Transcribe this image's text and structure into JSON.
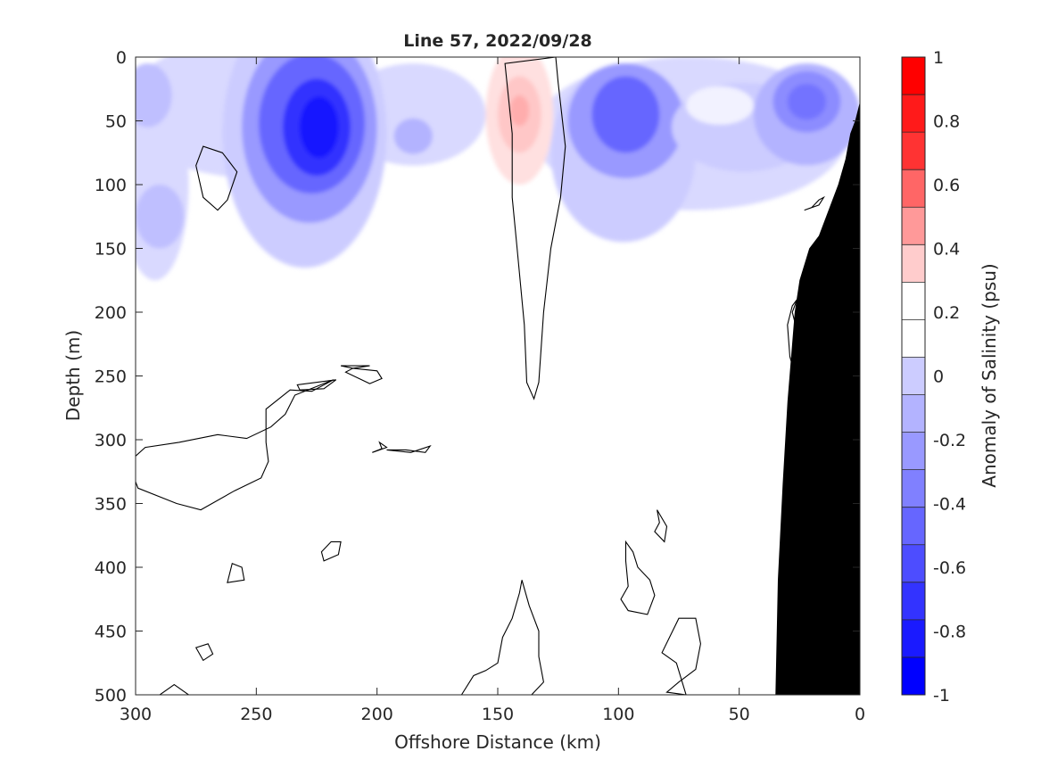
{
  "chart_data": {
    "type": "heatmap",
    "title": "Line 57, 2022/09/28",
    "xlabel": "Offshore Distance (km)",
    "ylabel": "Depth (m)",
    "colorbar_label": "Anomaly of Salinity (psu)",
    "xlim": [
      300,
      0
    ],
    "ylim": [
      500,
      0
    ],
    "x_reversed": true,
    "y_reversed": true,
    "x_ticks": [
      300,
      250,
      200,
      150,
      100,
      50,
      0
    ],
    "y_ticks": [
      0,
      50,
      100,
      150,
      200,
      250,
      300,
      350,
      400,
      450,
      500
    ],
    "colorbar_ticks": [
      1,
      0.8,
      0.6,
      0.4,
      0.2,
      0,
      -0.2,
      -0.4,
      -0.6,
      -0.8,
      -1
    ],
    "clim": [
      -1,
      1
    ],
    "contour_step": 0.1,
    "colorbar_colors": [
      "#ff0000",
      "#ff1a1a",
      "#ff3333",
      "#ff6666",
      "#ff9999",
      "#ffcccc",
      "#ffffff",
      "#ffffff",
      "#ccccff",
      "#b3b3ff",
      "#9999ff",
      "#8080ff",
      "#6666ff",
      "#4d4dff",
      "#3333ff",
      "#1a1aff",
      "#0000ff"
    ],
    "features": [
      {
        "name": "negative anomaly core",
        "x": 225,
        "y": 55,
        "value": -0.9
      },
      {
        "name": "negative anomaly",
        "x": 97,
        "y": 45,
        "value": -0.6
      },
      {
        "name": "negative anomaly",
        "x": 22,
        "y": 35,
        "value": -0.5
      },
      {
        "name": "positive anomaly core",
        "x": 141,
        "y": 42,
        "value": 0.3
      }
    ],
    "zero_contours": [
      [
        [
          147,
          5
        ],
        [
          144,
          60
        ],
        [
          144,
          110
        ],
        [
          142,
          150
        ],
        [
          139,
          210
        ],
        [
          138,
          255
        ],
        [
          135,
          268
        ],
        [
          133,
          255
        ],
        [
          131,
          200
        ],
        [
          128,
          150
        ],
        [
          124,
          110
        ],
        [
          122,
          70
        ],
        [
          125,
          20
        ],
        [
          126,
          0
        ]
      ],
      [
        [
          264,
          75
        ],
        [
          272,
          70
        ],
        [
          275,
          85
        ],
        [
          272,
          110
        ],
        [
          266,
          120
        ],
        [
          262,
          112
        ],
        [
          258,
          90
        ]
      ],
      [
        [
          218,
          253
        ],
        [
          227,
          262
        ],
        [
          236,
          261
        ],
        [
          246,
          276
        ],
        [
          246,
          302
        ],
        [
          245,
          317
        ],
        [
          248,
          330
        ],
        [
          259,
          340
        ],
        [
          273,
          355
        ],
        [
          283,
          350
        ],
        [
          299,
          338
        ],
        [
          303,
          318
        ],
        [
          296,
          306
        ],
        [
          282,
          302
        ],
        [
          266,
          296
        ],
        [
          254,
          299
        ],
        [
          244,
          290
        ],
        [
          238,
          280
        ],
        [
          234,
          265
        ]
      ],
      [
        [
          222,
          260
        ],
        [
          232,
          261
        ],
        [
          233,
          257
        ],
        [
          217,
          253
        ]
      ],
      [
        [
          203,
          256
        ],
        [
          198,
          252
        ],
        [
          200,
          246
        ],
        [
          210,
          244
        ],
        [
          213,
          247
        ]
      ],
      [
        [
          215,
          242
        ],
        [
          203,
          242
        ],
        [
          210,
          244
        ]
      ],
      [
        [
          199,
          302
        ],
        [
          196,
          306
        ],
        [
          202,
          310
        ],
        [
          198,
          307
        ]
      ],
      [
        [
          188,
          308
        ],
        [
          180,
          310
        ],
        [
          178,
          305
        ],
        [
          186,
          310
        ],
        [
          196,
          308
        ]
      ],
      [
        [
          223,
          388
        ],
        [
          219,
          380
        ],
        [
          215,
          380
        ],
        [
          216,
          390
        ],
        [
          222,
          395
        ]
      ],
      [
        [
          260,
          397
        ],
        [
          256,
          400
        ],
        [
          255,
          410
        ],
        [
          262,
          412
        ]
      ],
      [
        [
          275,
          463
        ],
        [
          270,
          460
        ],
        [
          268,
          468
        ],
        [
          272,
          473
        ]
      ],
      [
        [
          284,
          492
        ],
        [
          278,
          500
        ],
        [
          290,
          500
        ]
      ],
      [
        [
          165,
          500
        ],
        [
          160,
          485
        ],
        [
          155,
          481
        ],
        [
          150,
          475
        ],
        [
          148,
          455
        ],
        [
          144,
          440
        ],
        [
          141,
          420
        ],
        [
          140,
          410
        ],
        [
          137,
          430
        ],
        [
          133,
          450
        ],
        [
          133,
          470
        ],
        [
          131,
          490
        ],
        [
          136,
          500
        ]
      ],
      [
        [
          97,
          380
        ],
        [
          94,
          388
        ],
        [
          92,
          400
        ],
        [
          87,
          410
        ],
        [
          85,
          422
        ],
        [
          88,
          437
        ],
        [
          96,
          434
        ],
        [
          99,
          425
        ],
        [
          96,
          415
        ],
        [
          97,
          395
        ]
      ],
      [
        [
          84,
          355
        ],
        [
          83,
          365
        ],
        [
          85,
          372
        ],
        [
          81,
          380
        ],
        [
          80,
          368
        ]
      ],
      [
        [
          75,
          440
        ],
        [
          68,
          440
        ],
        [
          66,
          460
        ],
        [
          68,
          480
        ],
        [
          75,
          490
        ],
        [
          80,
          498
        ],
        [
          72,
          500
        ],
        [
          76,
          475
        ],
        [
          82,
          467
        ]
      ],
      [
        [
          26,
          190
        ],
        [
          28,
          200
        ],
        [
          26,
          215
        ],
        [
          23,
          250
        ],
        [
          27,
          248
        ],
        [
          29,
          235
        ],
        [
          30,
          210
        ],
        [
          28,
          195
        ]
      ],
      [
        [
          23,
          120
        ],
        [
          20,
          118
        ],
        [
          17,
          112
        ],
        [
          15,
          110
        ],
        [
          17,
          116
        ]
      ]
    ],
    "bathymetry": [
      [
        0,
        35
      ],
      [
        2,
        50
      ],
      [
        4,
        60
      ],
      [
        6,
        80
      ],
      [
        9,
        100
      ],
      [
        13,
        120
      ],
      [
        17,
        140
      ],
      [
        21,
        150
      ],
      [
        25,
        175
      ],
      [
        27,
        200
      ],
      [
        30,
        270
      ],
      [
        32,
        335
      ],
      [
        34,
        410
      ],
      [
        35,
        500
      ],
      [
        0,
        500
      ]
    ],
    "bathymetry_color": "#000000"
  }
}
